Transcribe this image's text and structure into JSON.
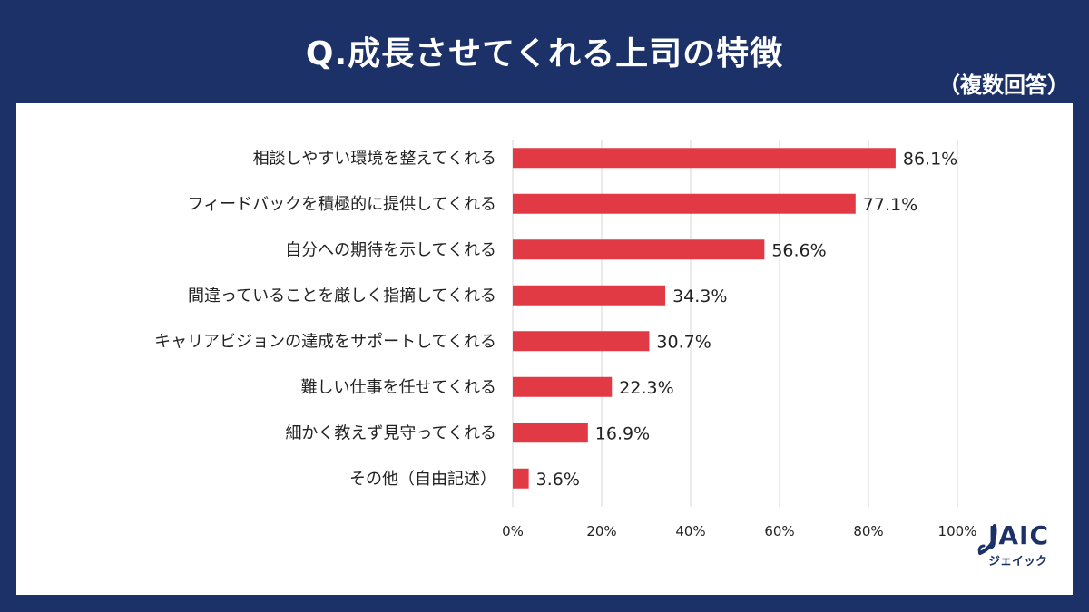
{
  "header": {
    "title": "Q.成長させてくれる上司の特徴",
    "note": "（複数回答）"
  },
  "brand": {
    "logo_text": "JAIC",
    "logo_sub": "ジェイック"
  },
  "colors": {
    "background": "#1b3168",
    "bar": "#e13a45",
    "grid": "#d5d5d5"
  },
  "chart_data": {
    "type": "bar",
    "orientation": "horizontal",
    "categories": [
      "相談しやすい環境を整えてくれる",
      "フィードバックを積極的に提供してくれる",
      "自分への期待を示してくれる",
      "間違っていることを厳しく指摘してくれる",
      "キャリアビジョンの達成をサポートしてくれる",
      "難しい仕事を任せてくれる",
      "細かく教えず見守ってくれる",
      "その他（自由記述）"
    ],
    "values": [
      86.1,
      77.1,
      56.6,
      34.3,
      30.7,
      22.3,
      16.9,
      3.6
    ],
    "value_labels": [
      "86.1%",
      "77.1%",
      "56.6%",
      "34.3%",
      "30.7%",
      "22.3%",
      "16.9%",
      "3.6%"
    ],
    "xlim": [
      0,
      100
    ],
    "x_ticks": [
      "0%",
      "20%",
      "40%",
      "60%",
      "80%",
      "100%"
    ],
    "grid": true
  }
}
